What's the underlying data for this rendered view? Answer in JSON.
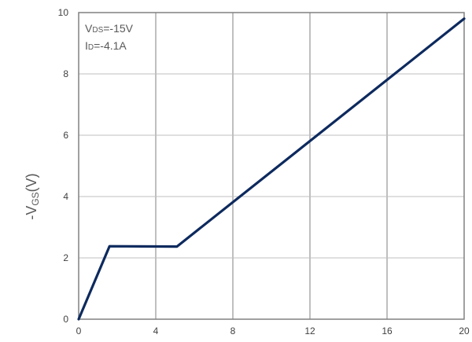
{
  "chart_data": {
    "type": "line",
    "xlabel": "",
    "ylabel": {
      "prefix": "-V",
      "sub": "GS",
      "suffix": "(V)"
    },
    "xlim": [
      0,
      20
    ],
    "ylim": [
      0,
      10
    ],
    "xticks": [
      "0",
      "4",
      "8",
      "12",
      "16",
      "20"
    ],
    "yticks": [
      "0",
      "2",
      "4",
      "6",
      "8",
      "10"
    ],
    "grid": true,
    "annotations": [
      {
        "prefix": "V",
        "sub": "DS",
        "suffix": "=-15V"
      },
      {
        "prefix": "I",
        "sub": "D",
        "suffix": "=-4.1A"
      }
    ],
    "series": [
      {
        "color": "#0d2a5e",
        "x": [
          0,
          1.6,
          5.1,
          20
        ],
        "y": [
          0,
          2.38,
          2.37,
          9.8
        ]
      }
    ]
  }
}
